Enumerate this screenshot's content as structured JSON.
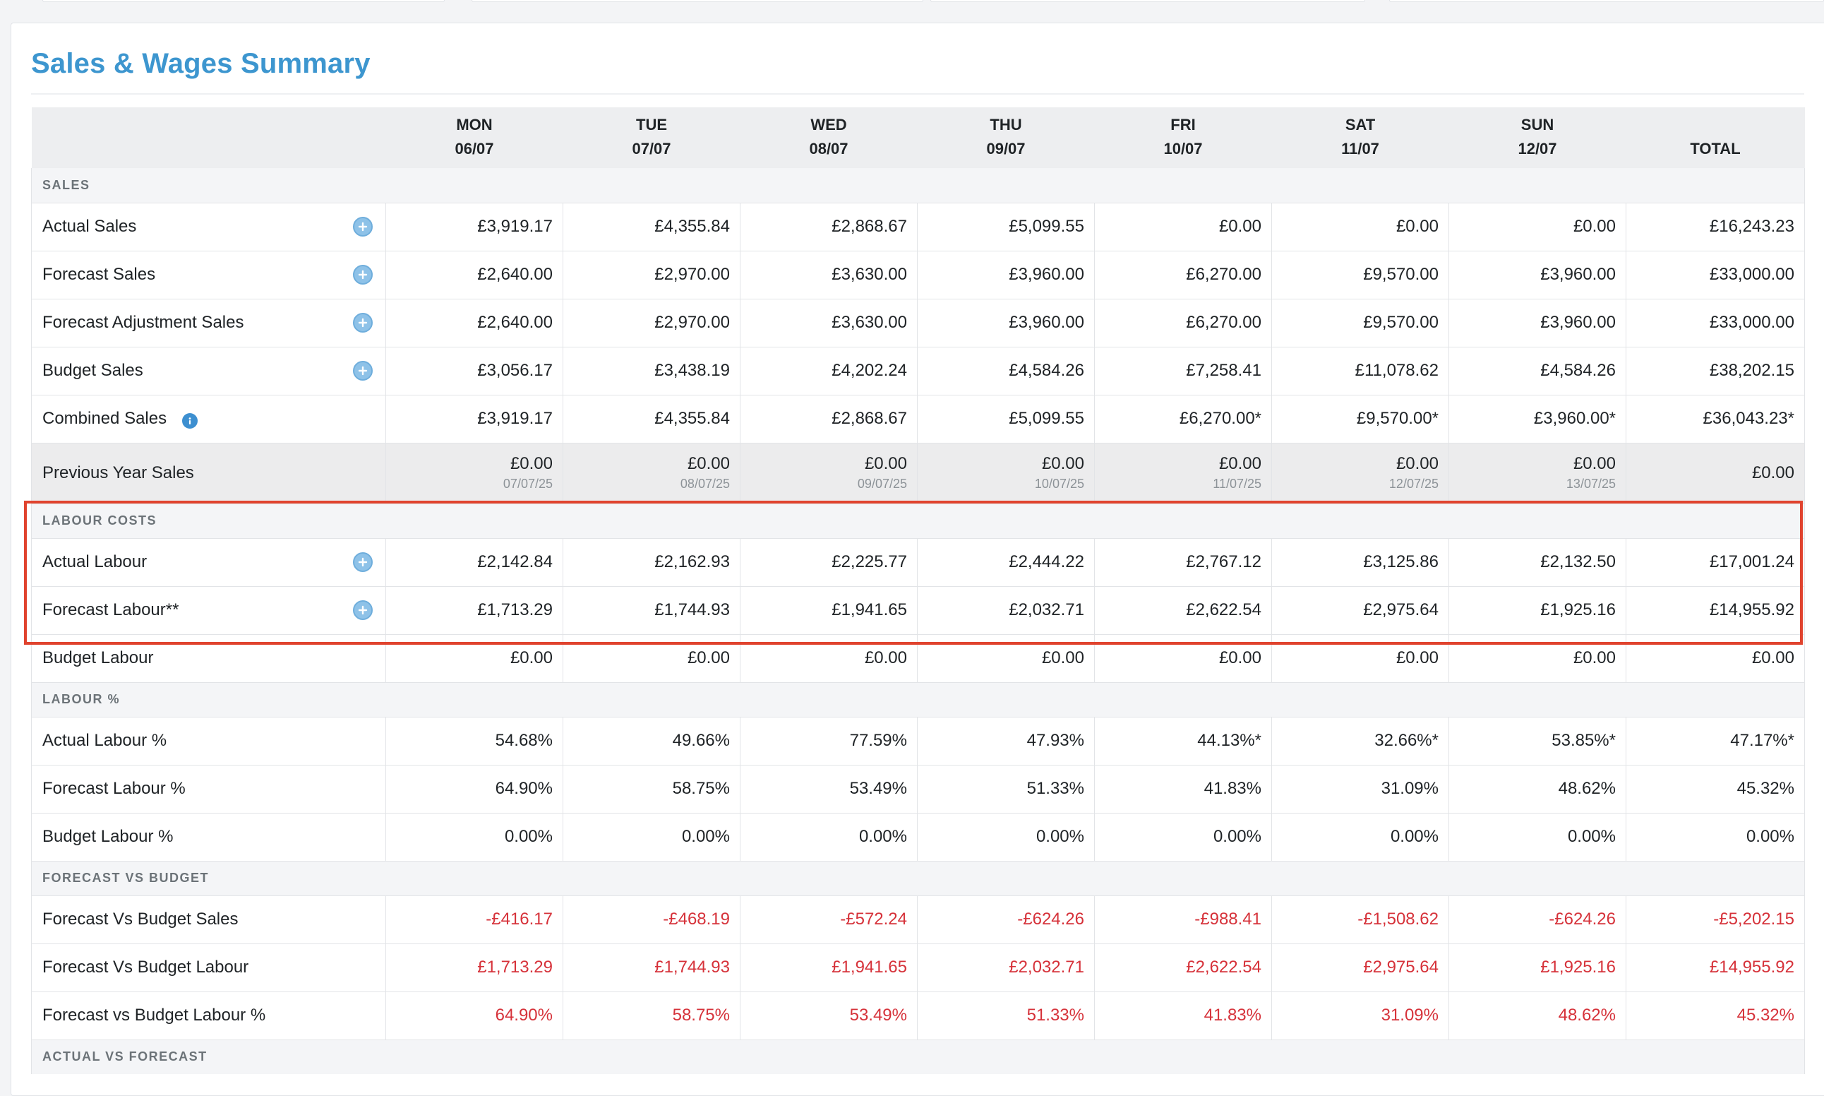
{
  "title": "Sales & Wages Summary",
  "columns": [
    {
      "day": "MON",
      "date": "06/07"
    },
    {
      "day": "TUE",
      "date": "07/07"
    },
    {
      "day": "WED",
      "date": "08/07"
    },
    {
      "day": "THU",
      "date": "09/07"
    },
    {
      "day": "FRI",
      "date": "10/07"
    },
    {
      "day": "SAT",
      "date": "11/07"
    },
    {
      "day": "SUN",
      "date": "12/07"
    }
  ],
  "total_label": "TOTAL",
  "sections": {
    "sales": "SALES",
    "labour_costs": "LABOUR COSTS",
    "labour_pct": "LABOUR %",
    "forecast_vs_budget": "FORECAST VS BUDGET",
    "actual_vs_forecast": "ACTUAL VS FORECAST"
  },
  "rows": {
    "actual_sales": {
      "label": "Actual Sales",
      "values": [
        "£3,919.17",
        "£4,355.84",
        "£2,868.67",
        "£5,099.55",
        "£0.00",
        "£0.00",
        "£0.00"
      ],
      "total": "£16,243.23"
    },
    "forecast_sales": {
      "label": "Forecast Sales",
      "values": [
        "£2,640.00",
        "£2,970.00",
        "£3,630.00",
        "£3,960.00",
        "£6,270.00",
        "£9,570.00",
        "£3,960.00"
      ],
      "total": "£33,000.00"
    },
    "forecast_adjustment_sales": {
      "label": "Forecast Adjustment Sales",
      "values": [
        "£2,640.00",
        "£2,970.00",
        "£3,630.00",
        "£3,960.00",
        "£6,270.00",
        "£9,570.00",
        "£3,960.00"
      ],
      "total": "£33,000.00"
    },
    "budget_sales": {
      "label": "Budget Sales",
      "values": [
        "£3,056.17",
        "£3,438.19",
        "£4,202.24",
        "£4,584.26",
        "£7,258.41",
        "£11,078.62",
        "£4,584.26"
      ],
      "total": "£38,202.15"
    },
    "combined_sales": {
      "label": "Combined Sales",
      "values": [
        "£3,919.17",
        "£4,355.84",
        "£2,868.67",
        "£5,099.55",
        "£6,270.00*",
        "£9,570.00*",
        "£3,960.00*"
      ],
      "total": "£36,043.23*"
    },
    "previous_year_sales": {
      "label": "Previous Year Sales",
      "values": [
        "£0.00",
        "£0.00",
        "£0.00",
        "£0.00",
        "£0.00",
        "£0.00",
        "£0.00"
      ],
      "dates": [
        "07/07/25",
        "08/07/25",
        "09/07/25",
        "10/07/25",
        "11/07/25",
        "12/07/25",
        "13/07/25"
      ],
      "total": "£0.00"
    },
    "actual_labour": {
      "label": "Actual Labour",
      "values": [
        "£2,142.84",
        "£2,162.93",
        "£2,225.77",
        "£2,444.22",
        "£2,767.12",
        "£3,125.86",
        "£2,132.50"
      ],
      "total": "£17,001.24"
    },
    "forecast_labour": {
      "label": "Forecast Labour**",
      "values": [
        "£1,713.29",
        "£1,744.93",
        "£1,941.65",
        "£2,032.71",
        "£2,622.54",
        "£2,975.64",
        "£1,925.16"
      ],
      "total": "£14,955.92"
    },
    "budget_labour": {
      "label": "Budget Labour",
      "values": [
        "£0.00",
        "£0.00",
        "£0.00",
        "£0.00",
        "£0.00",
        "£0.00",
        "£0.00"
      ],
      "total": "£0.00"
    },
    "actual_labour_pct": {
      "label": "Actual Labour %",
      "values": [
        "54.68%",
        "49.66%",
        "77.59%",
        "47.93%",
        "44.13%*",
        "32.66%*",
        "53.85%*"
      ],
      "total": "47.17%*"
    },
    "forecast_labour_pct": {
      "label": "Forecast Labour %",
      "values": [
        "64.90%",
        "58.75%",
        "53.49%",
        "51.33%",
        "41.83%",
        "31.09%",
        "48.62%"
      ],
      "total": "45.32%"
    },
    "budget_labour_pct": {
      "label": "Budget Labour %",
      "values": [
        "0.00%",
        "0.00%",
        "0.00%",
        "0.00%",
        "0.00%",
        "0.00%",
        "0.00%"
      ],
      "total": "0.00%"
    },
    "fvb_sales": {
      "label": "Forecast Vs Budget Sales",
      "values": [
        "-£416.17",
        "-£468.19",
        "-£572.24",
        "-£624.26",
        "-£988.41",
        "-£1,508.62",
        "-£624.26"
      ],
      "total": "-£5,202.15"
    },
    "fvb_labour": {
      "label": "Forecast Vs Budget Labour",
      "values": [
        "£1,713.29",
        "£1,744.93",
        "£1,941.65",
        "£2,032.71",
        "£2,622.54",
        "£2,975.64",
        "£1,925.16"
      ],
      "total": "£14,955.92"
    },
    "fvb_labour_pct": {
      "label": "Forecast vs Budget Labour %",
      "values": [
        "64.90%",
        "58.75%",
        "53.49%",
        "51.33%",
        "41.83%",
        "31.09%",
        "48.62%"
      ],
      "total": "45.32%"
    }
  },
  "icons": {
    "add": "plus-circle-icon",
    "info": "info-icon"
  },
  "colors": {
    "accent": "#3d96cf",
    "negative": "#d6323a",
    "highlight_border": "#e0432e"
  }
}
